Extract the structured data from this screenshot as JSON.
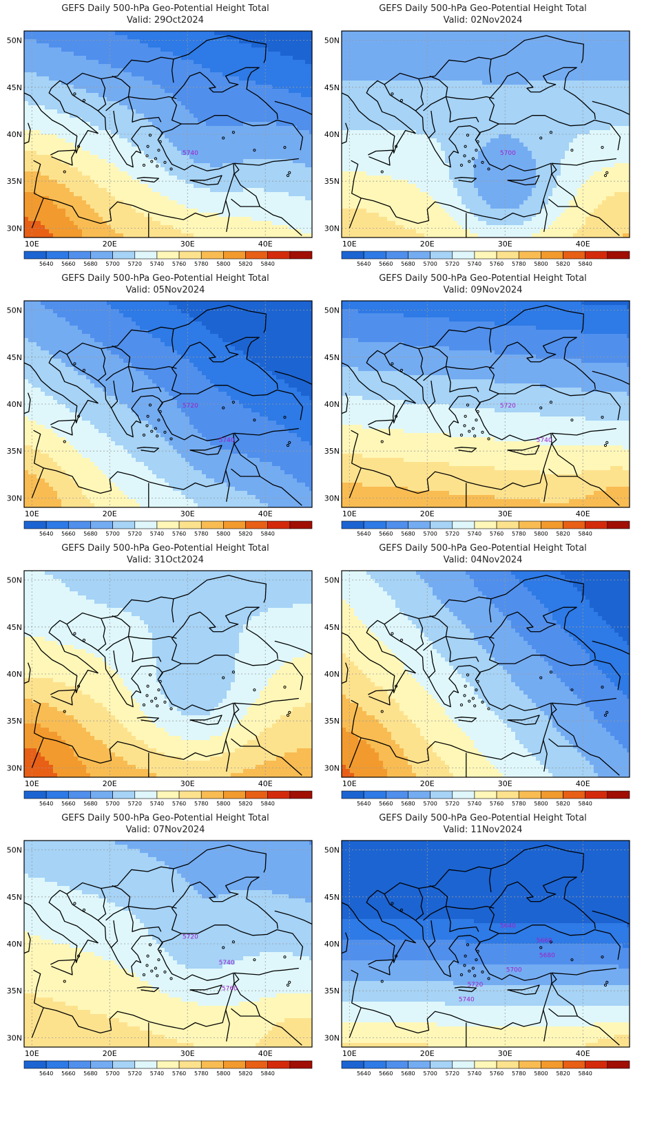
{
  "figure": {
    "title_prefix": "GEFS Daily 500-hPa Geo-Potential Height Total",
    "valid_prefix": "Valid:"
  },
  "map_axes": {
    "lon_ticks": [
      "10E",
      "20E",
      "30E",
      "40E"
    ],
    "lon_values": [
      10,
      20,
      30,
      40
    ],
    "lat_ticks": [
      "30N",
      "35N",
      "40N",
      "45N",
      "50N"
    ],
    "lat_values": [
      30,
      35,
      40,
      45,
      50
    ],
    "lon_range": [
      9,
      46
    ],
    "lat_range": [
      29,
      51
    ]
  },
  "colorbar": {
    "labels": [
      "5640",
      "5660",
      "5680",
      "5700",
      "5720",
      "5740",
      "5760",
      "5780",
      "5800",
      "5820",
      "5840"
    ],
    "colors": [
      "#1c64d2",
      "#2e7ae6",
      "#508fec",
      "#74acf2",
      "#a6d3f6",
      "#dff7fb",
      "#fff7b8",
      "#fde28e",
      "#f8bc52",
      "#f29a2e",
      "#e85f16",
      "#d42a0c",
      "#a00e04"
    ]
  },
  "panels": [
    {
      "title": "GEFS Daily 500-hPa Geo-Potential Height Total",
      "valid": "Valid: 29Oct2024",
      "contour_labels": [
        "5740"
      ],
      "pattern": "trough-east-ridge-sw"
    },
    {
      "title": "GEFS Daily 500-hPa Geo-Potential Height Total",
      "valid": "Valid: 05Nov2024",
      "contour_labels": [
        "5720",
        "5740"
      ],
      "pattern": "trough-ne"
    },
    {
      "title": "GEFS Daily 500-hPa Geo-Potential Height Total",
      "valid": "Valid: 31Oct2024",
      "contour_labels": [],
      "pattern": "trough-central"
    },
    {
      "title": "GEFS Daily 500-hPa Geo-Potential Height Total",
      "valid": "Valid: 07Nov2024",
      "contour_labels": [
        "5720",
        "5740",
        "5760"
      ],
      "pattern": "trough-ne-weak"
    },
    {
      "title": "GEFS Daily 500-hPa Geo-Potential Height Total",
      "valid": "Valid: 02Nov2024",
      "contour_labels": [
        "5700"
      ],
      "pattern": "cutoff-low"
    },
    {
      "title": "GEFS Daily 500-hPa Geo-Potential Height Total",
      "valid": "Valid: 09Nov2024",
      "contour_labels": [
        "5720",
        "5740"
      ],
      "pattern": "trough-north"
    },
    {
      "title": "GEFS Daily 500-hPa Geo-Potential Height Total",
      "valid": "Valid: 04Nov2024",
      "contour_labels": [],
      "pattern": "trough-east"
    },
    {
      "title": "GEFS Daily 500-hPa Geo-Potential Height Total",
      "valid": "Valid: 11Nov2024",
      "contour_labels": [
        "5640",
        "5660",
        "5680",
        "5700",
        "5720",
        "5740"
      ],
      "pattern": "deep-trough-north"
    }
  ]
}
